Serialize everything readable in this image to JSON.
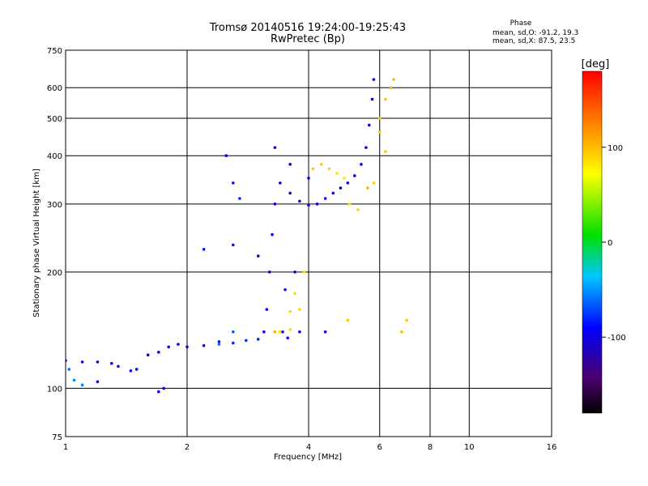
{
  "chart_data": {
    "type": "scatter",
    "title": "Tromsø 20140516 19:24:00-19:25:43",
    "subtitle": "RwPretec (Bp)",
    "phase_info": {
      "heading": "Phase",
      "line1": "mean, sd,O: -91.2, 19.3",
      "line2": "mean, sd,X:  87.5, 23.5"
    },
    "xlabel": "Frequency [MHz]",
    "ylabel": "Stationary phase Virtual Height [km]",
    "xscale": "log",
    "yscale": "log",
    "xlim": [
      1,
      16
    ],
    "ylim": [
      75,
      750
    ],
    "xticks": [
      1,
      2,
      4,
      6,
      8,
      10,
      16
    ],
    "xtick_labels": [
      "1",
      "2",
      "4",
      "6",
      "8",
      "10",
      "16"
    ],
    "yticks": [
      75,
      100,
      200,
      300,
      400,
      500,
      600,
      750
    ],
    "ytick_labels": [
      "75",
      "100",
      "200",
      "300",
      "400",
      "500",
      "600",
      "750"
    ],
    "grid": true,
    "colorbar": {
      "label": "[deg]",
      "range": [
        -180,
        180
      ],
      "ticks": [
        100,
        0,
        -100
      ],
      "tick_labels": [
        "100",
        "0",
        "-100"
      ]
    },
    "series": [
      {
        "points": [
          [
            1.0,
            118,
            -95
          ],
          [
            1.1,
            117,
            -98
          ],
          [
            1.2,
            117,
            -100
          ],
          [
            1.3,
            116,
            -95
          ],
          [
            1.35,
            114,
            -100
          ],
          [
            1.45,
            111,
            -90
          ],
          [
            1.5,
            112,
            -92
          ],
          [
            1.6,
            122,
            -100
          ],
          [
            1.7,
            124,
            -95
          ],
          [
            1.8,
            128,
            -90
          ],
          [
            1.9,
            130,
            -95
          ],
          [
            2.0,
            128,
            -95
          ],
          [
            2.2,
            129,
            -90
          ],
          [
            2.4,
            132,
            -85
          ],
          [
            2.6,
            131,
            -80
          ],
          [
            2.8,
            133,
            -75
          ],
          [
            3.0,
            134,
            -80
          ],
          [
            3.1,
            140,
            -90
          ],
          [
            3.15,
            160,
            -95
          ],
          [
            3.2,
            200,
            -95
          ],
          [
            3.25,
            250,
            -95
          ],
          [
            3.3,
            300,
            -95
          ],
          [
            3.4,
            340,
            -95
          ],
          [
            3.6,
            320,
            -100
          ],
          [
            3.8,
            305,
            -100
          ],
          [
            4.0,
            298,
            -100
          ],
          [
            4.2,
            300,
            -100
          ],
          [
            4.4,
            310,
            -95
          ],
          [
            4.6,
            320,
            -95
          ],
          [
            4.8,
            330,
            -95
          ],
          [
            5.0,
            340,
            -95
          ],
          [
            5.2,
            355,
            -95
          ],
          [
            5.4,
            380,
            -95
          ],
          [
            5.55,
            420,
            -95
          ],
          [
            5.65,
            480,
            -95
          ],
          [
            5.75,
            560,
            -100
          ],
          [
            5.8,
            630,
            -100
          ],
          [
            3.3,
            420,
            -100
          ],
          [
            3.6,
            380,
            -100
          ],
          [
            4.0,
            350,
            -95
          ],
          [
            3.5,
            180,
            -95
          ],
          [
            3.7,
            200,
            -95
          ],
          [
            2.5,
            400,
            -90
          ],
          [
            2.6,
            340,
            -85
          ],
          [
            2.7,
            310,
            -80
          ],
          [
            3.0,
            220,
            -100
          ],
          [
            2.6,
            235,
            -85
          ],
          [
            2.2,
            229,
            -85
          ],
          [
            1.7,
            98,
            -98
          ],
          [
            1.75,
            100,
            -98
          ],
          [
            1.02,
            112,
            -60
          ],
          [
            1.05,
            105,
            -55
          ],
          [
            1.1,
            102,
            -55
          ],
          [
            1.2,
            104,
            -95
          ],
          [
            2.4,
            130,
            -60
          ],
          [
            2.6,
            140,
            -65
          ],
          [
            3.45,
            140,
            -95
          ],
          [
            3.55,
            135,
            -95
          ],
          [
            3.8,
            140,
            -100
          ],
          [
            4.4,
            140,
            -100
          ]
        ]
      },
      {
        "points": [
          [
            3.4,
            140,
            90
          ],
          [
            3.6,
            142,
            88
          ],
          [
            3.8,
            160,
            88
          ],
          [
            3.9,
            200,
            88
          ],
          [
            4.1,
            370,
            95
          ],
          [
            4.3,
            380,
            92
          ],
          [
            4.5,
            370,
            90
          ],
          [
            4.7,
            360,
            85
          ],
          [
            4.9,
            350,
            80
          ],
          [
            5.05,
            300,
            86
          ],
          [
            5.3,
            290,
            90
          ],
          [
            5.6,
            330,
            100
          ],
          [
            6.0,
            500,
            100
          ],
          [
            6.2,
            560,
            100
          ],
          [
            6.4,
            600,
            100
          ],
          [
            6.5,
            630,
            100
          ],
          [
            6.2,
            410,
            95
          ],
          [
            6.0,
            460,
            95
          ],
          [
            6.8,
            140,
            100
          ],
          [
            7.0,
            150,
            98
          ],
          [
            5.0,
            150,
            95
          ],
          [
            3.6,
            158,
            88
          ],
          [
            3.7,
            176,
            88
          ],
          [
            3.3,
            140,
            105
          ],
          [
            5.8,
            340,
            90
          ]
        ]
      }
    ]
  }
}
